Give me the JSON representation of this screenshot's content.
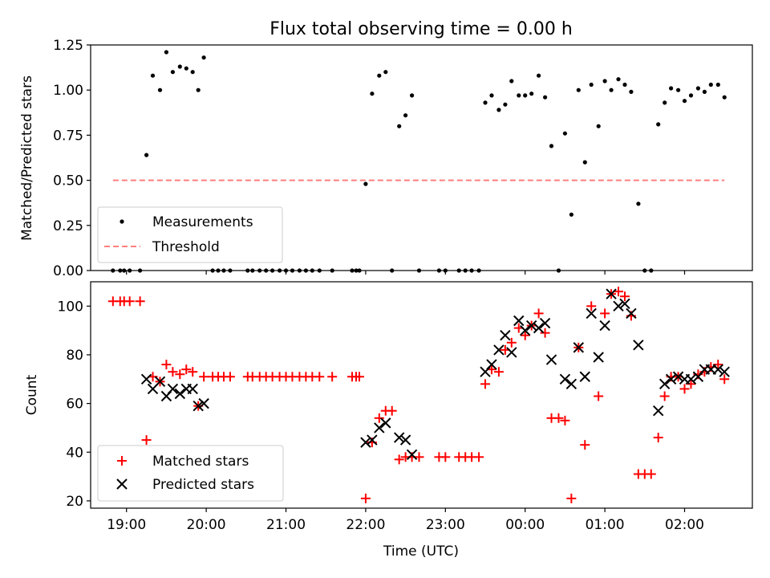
{
  "chart_data": [
    {
      "type": "scatter",
      "title": "Flux total observing time = 0.00 h",
      "xlabel": "",
      "ylabel": "Matched/Predicted stars",
      "xlim": [
        18.55,
        26.85
      ],
      "ylim": [
        0,
        1.25
      ],
      "yticks": [
        "0.00",
        "0.25",
        "0.50",
        "0.75",
        "1.00",
        "1.25"
      ],
      "yticks_values": [
        0,
        0.25,
        0.5,
        0.75,
        1.0,
        1.25
      ],
      "legend_position": "lower-left",
      "series": [
        {
          "name": "Measurements",
          "color": "#000000",
          "marker": "dot",
          "x": [
            18.83,
            18.92,
            18.97,
            19.04,
            19.17,
            19.25,
            19.33,
            19.42,
            19.5,
            19.58,
            19.67,
            19.75,
            19.83,
            19.9,
            19.97,
            20.08,
            20.15,
            20.22,
            20.3,
            20.52,
            20.58,
            20.67,
            20.75,
            20.83,
            20.92,
            21.0,
            21.08,
            21.17,
            21.25,
            21.33,
            21.42,
            21.58,
            21.83,
            21.88,
            21.92,
            22.0,
            22.08,
            22.17,
            22.25,
            22.33,
            22.42,
            22.5,
            22.58,
            22.67,
            22.92,
            23.0,
            23.17,
            23.25,
            23.33,
            23.42,
            23.5,
            23.58,
            23.67,
            23.75,
            23.83,
            23.92,
            24.0,
            24.08,
            24.17,
            24.25,
            24.33,
            24.42,
            24.5,
            24.58,
            24.67,
            24.75,
            24.83,
            24.92,
            25.0,
            25.08,
            25.17,
            25.25,
            25.33,
            25.42,
            25.5,
            25.58,
            25.67,
            25.75,
            25.83,
            25.92,
            26.0,
            26.08,
            26.17,
            26.25,
            26.33,
            26.42,
            26.5
          ],
          "y": [
            0.0,
            0.0,
            0.0,
            0.0,
            0.0,
            0.64,
            1.08,
            1.0,
            1.21,
            1.1,
            1.13,
            1.12,
            1.1,
            1.0,
            1.18,
            0.0,
            0.0,
            0.0,
            0.0,
            0.0,
            0.0,
            0.0,
            0.0,
            0.0,
            0.0,
            0.0,
            0.0,
            0.0,
            0.0,
            0.0,
            0.0,
            0.0,
            0.0,
            0.0,
            0.0,
            0.48,
            0.98,
            1.08,
            1.1,
            0.0,
            0.8,
            0.86,
            0.97,
            0.0,
            0.0,
            0.0,
            0.0,
            0.0,
            0.0,
            0.0,
            0.93,
            0.97,
            0.89,
            0.92,
            1.05,
            0.97,
            0.97,
            0.98,
            1.08,
            0.96,
            0.69,
            0.0,
            0.76,
            0.31,
            1.0,
            0.6,
            1.03,
            0.8,
            1.05,
            1.0,
            1.06,
            1.03,
            0.99,
            0.37,
            0.0,
            0.0,
            0.81,
            0.93,
            1.01,
            1.0,
            0.94,
            0.97,
            1.01,
            0.99,
            1.03,
            1.03,
            0.96
          ]
        },
        {
          "name": "Threshold",
          "color": "#ff7f7f",
          "marker": "dashed-line",
          "x": [
            18.83,
            26.5
          ],
          "y": [
            0.5,
            0.5
          ]
        }
      ]
    },
    {
      "type": "scatter",
      "title": "",
      "xlabel": "Time (UTC)",
      "ylabel": "Count",
      "xlim": [
        18.55,
        26.85
      ],
      "ylim": [
        17,
        110
      ],
      "xticks": [
        "19:00",
        "20:00",
        "21:00",
        "22:00",
        "23:00",
        "00:00",
        "01:00",
        "02:00"
      ],
      "xticks_values": [
        19,
        20,
        21,
        22,
        23,
        24,
        25,
        26
      ],
      "yticks": [
        "20",
        "40",
        "60",
        "80",
        "100"
      ],
      "yticks_values": [
        20,
        40,
        60,
        80,
        100
      ],
      "legend_position": "lower-left",
      "series": [
        {
          "name": "Matched stars",
          "color": "#ff0000",
          "marker": "plus",
          "x": [
            18.83,
            18.92,
            18.97,
            19.04,
            19.17,
            19.25,
            19.33,
            19.42,
            19.5,
            19.58,
            19.67,
            19.75,
            19.83,
            19.9,
            19.97,
            20.08,
            20.15,
            20.22,
            20.3,
            20.52,
            20.58,
            20.67,
            20.75,
            20.83,
            20.92,
            21.0,
            21.08,
            21.17,
            21.25,
            21.33,
            21.42,
            21.58,
            21.83,
            21.88,
            21.92,
            22.0,
            22.08,
            22.17,
            22.25,
            22.33,
            22.42,
            22.5,
            22.58,
            22.67,
            22.92,
            23.0,
            23.17,
            23.25,
            23.33,
            23.42,
            23.5,
            23.58,
            23.67,
            23.75,
            23.83,
            23.92,
            24.0,
            24.08,
            24.17,
            24.25,
            24.33,
            24.42,
            24.5,
            24.58,
            24.67,
            24.75,
            24.83,
            24.92,
            25.0,
            25.08,
            25.17,
            25.25,
            25.33,
            25.42,
            25.5,
            25.58,
            25.67,
            25.75,
            25.83,
            25.92,
            26.0,
            26.08,
            26.17,
            26.25,
            26.33,
            26.42,
            26.5
          ],
          "y": [
            102,
            102,
            102,
            102,
            102,
            45,
            71,
            69,
            76,
            73,
            72,
            74,
            73,
            59,
            71,
            71,
            71,
            71,
            71,
            71,
            71,
            71,
            71,
            71,
            71,
            71,
            71,
            71,
            71,
            71,
            71,
            71,
            71,
            71,
            71,
            21,
            44,
            54,
            57,
            57,
            37,
            38,
            38,
            38,
            38,
            38,
            38,
            38,
            38,
            38,
            68,
            74,
            73,
            82,
            85,
            91,
            88,
            92,
            97,
            89,
            54,
            54,
            53,
            21,
            83,
            43,
            100,
            63,
            97,
            105,
            106,
            104,
            96,
            31,
            31,
            31,
            46,
            63,
            71,
            71,
            66,
            68,
            72,
            73,
            75,
            76,
            70
          ]
        },
        {
          "name": "Predicted stars",
          "color": "#000000",
          "marker": "x",
          "x": [
            19.25,
            19.33,
            19.42,
            19.5,
            19.58,
            19.67,
            19.75,
            19.83,
            19.9,
            19.97,
            22.0,
            22.08,
            22.17,
            22.25,
            22.42,
            22.5,
            22.58,
            23.5,
            23.58,
            23.67,
            23.75,
            23.83,
            23.92,
            24.0,
            24.08,
            24.17,
            24.25,
            24.33,
            24.5,
            24.58,
            24.67,
            24.75,
            24.83,
            24.92,
            25.0,
            25.08,
            25.17,
            25.25,
            25.33,
            25.42,
            25.67,
            25.75,
            25.83,
            25.92,
            26.0,
            26.08,
            26.17,
            26.25,
            26.33,
            26.42,
            26.5
          ],
          "y": [
            70,
            66,
            69,
            63,
            66,
            64,
            66,
            66,
            59,
            60,
            44,
            45,
            50,
            52,
            46,
            45,
            39,
            73,
            76,
            82,
            88,
            81,
            94,
            90,
            92,
            91,
            93,
            78,
            70,
            68,
            83,
            71,
            97,
            79,
            92,
            105,
            100,
            101,
            97,
            84,
            57,
            68,
            70,
            71,
            70,
            70,
            71,
            74,
            74,
            74,
            73
          ]
        }
      ]
    }
  ]
}
